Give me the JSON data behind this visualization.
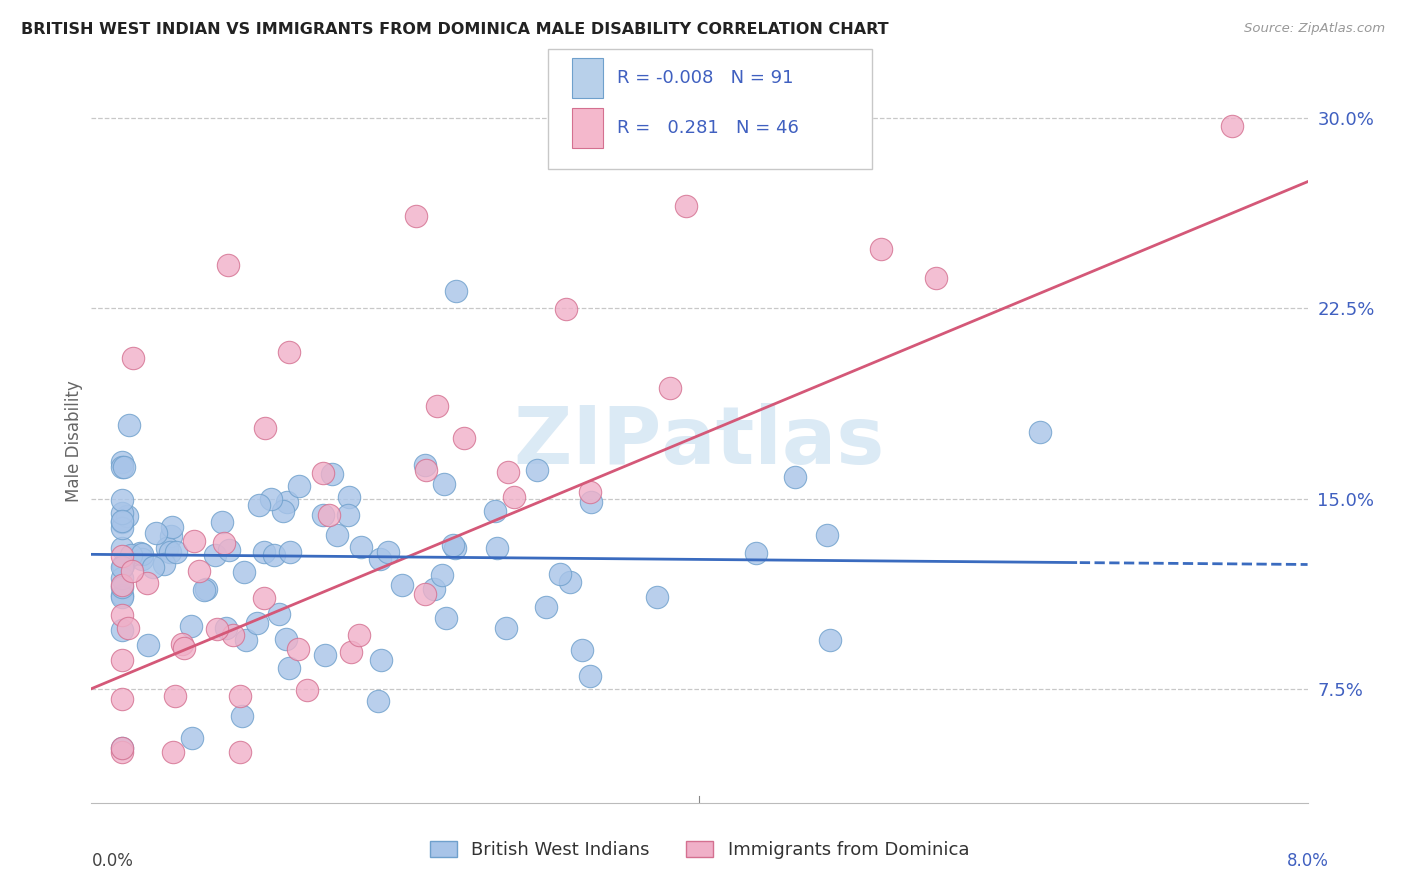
{
  "title": "BRITISH WEST INDIAN VS IMMIGRANTS FROM DOMINICA MALE DISABILITY CORRELATION CHART",
  "source": "Source: ZipAtlas.com",
  "ylabel": "Male Disability",
  "ytick_vals": [
    0.075,
    0.15,
    0.225,
    0.3
  ],
  "ytick_labels": [
    "7.5%",
    "15.0%",
    "22.5%",
    "30.0%"
  ],
  "xmin": 0.0,
  "xmax": 0.08,
  "ymin": 0.03,
  "ymax": 0.315,
  "blue_color": "#a8c4e8",
  "blue_edge": "#6fa0cc",
  "blue_trend": "#3a6bbf",
  "pink_color": "#f0b0c8",
  "pink_edge": "#d47090",
  "pink_trend": "#d45878",
  "grid_color": "#c8c8c8",
  "legend_blue_fill": "#b8d0ea",
  "legend_pink_fill": "#f4b8cc",
  "legend_text_color": "#4060c0",
  "watermark_color": "#d8e8f4",
  "blue_name": "British West Indians",
  "pink_name": "Immigrants from Dominica",
  "blue_R": -0.008,
  "blue_N": 91,
  "pink_R": 0.281,
  "pink_N": 46,
  "blue_trend_solid_end": 0.065,
  "blue_intercept": 0.128,
  "blue_slope": -0.05,
  "pink_intercept": 0.075,
  "pink_slope": 2.5
}
